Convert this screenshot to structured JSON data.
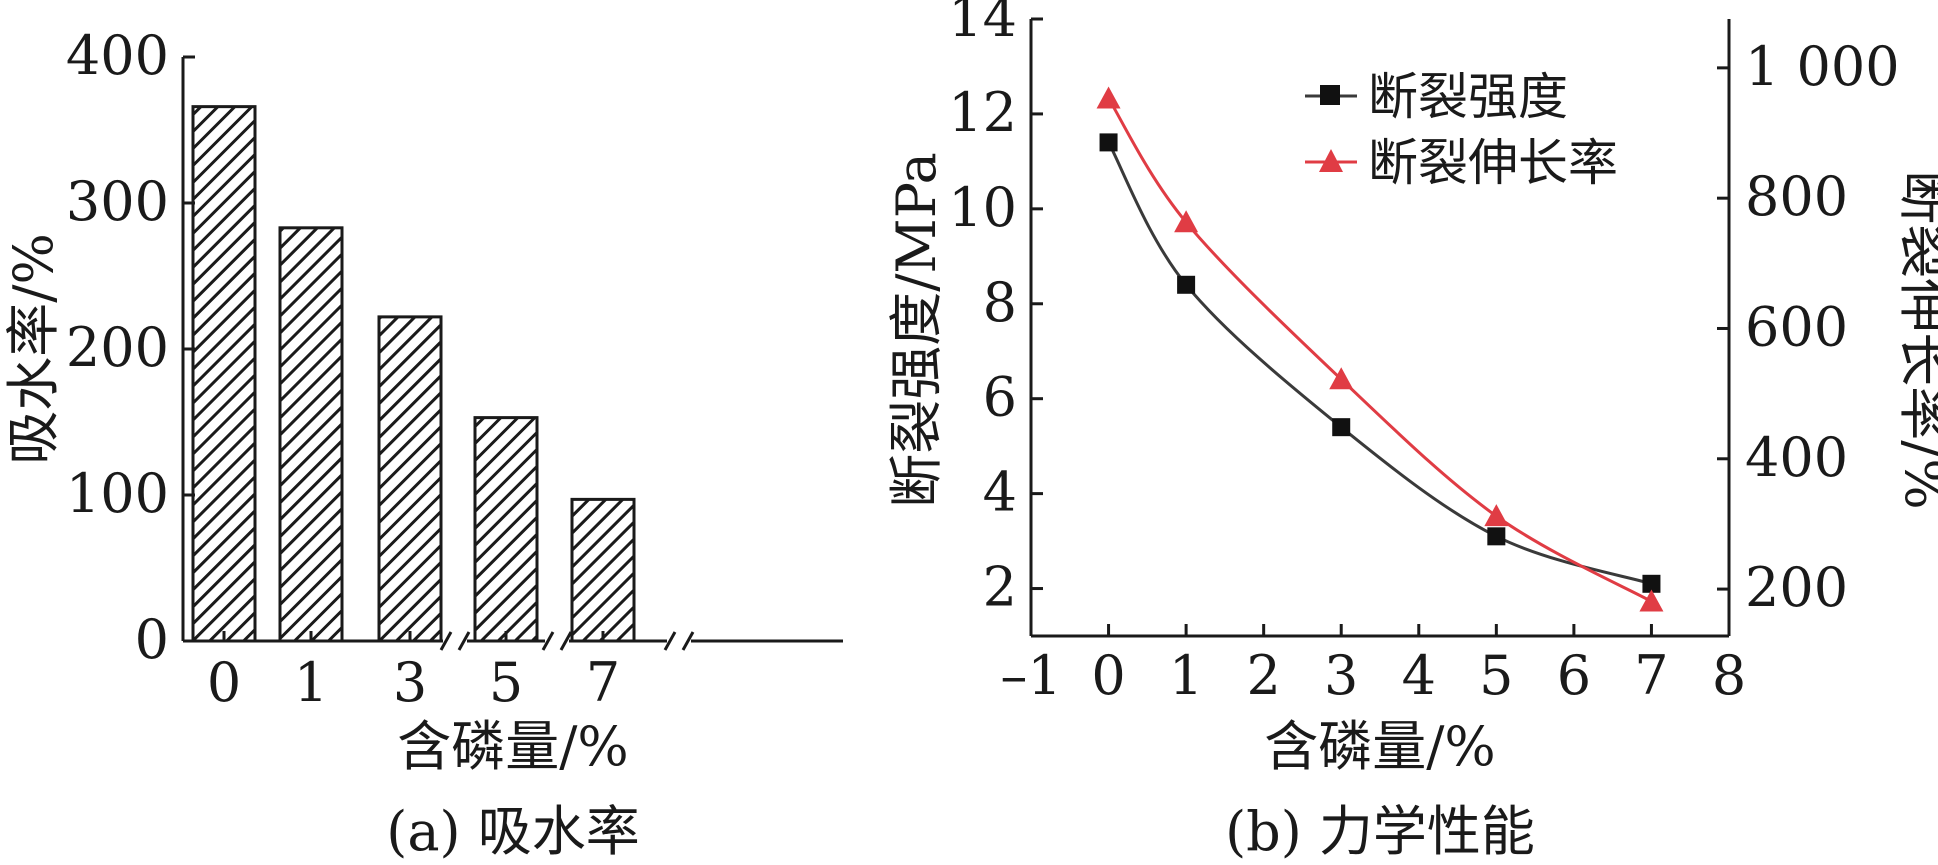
{
  "chart_data": [
    {
      "type": "bar",
      "caption": "(a) 吸水率",
      "xlabel": "含磷量/%",
      "ylabel": "吸水率/%",
      "categories": [
        "0",
        "1",
        "3",
        "5",
        "7"
      ],
      "values": [
        366,
        283,
        222,
        153,
        97
      ],
      "ylim": [
        0,
        400
      ],
      "yticks": [
        "0",
        "100",
        "200",
        "300",
        "400"
      ],
      "axis_breaks": true,
      "bar_pattern": "diagonal-hatch"
    },
    {
      "type": "line",
      "caption": "(b) 力学性能",
      "xlabel": "含磷量/%",
      "ylabel": "断裂强度/MPa",
      "y2label": "断裂伸长率/%",
      "xlim": [
        -1,
        8
      ],
      "xticks": [
        "–1",
        "0",
        "1",
        "2",
        "3",
        "4",
        "5",
        "6",
        "7",
        "8"
      ],
      "ylim": [
        1,
        14
      ],
      "yticks": [
        "2",
        "4",
        "6",
        "8",
        "10",
        "12",
        "14"
      ],
      "y2lim": [
        128,
        1075
      ],
      "y2ticks": [
        "200",
        "400",
        "600",
        "800",
        "1 000"
      ],
      "legend_position": "top-right",
      "series": [
        {
          "name": "断裂强度",
          "axis": "left",
          "marker": "square",
          "color": "#3a3a3a",
          "x": [
            0,
            1,
            3,
            5,
            7
          ],
          "y": [
            11.4,
            8.4,
            5.4,
            3.1,
            2.1
          ]
        },
        {
          "name": "断裂伸长率",
          "axis": "right",
          "marker": "triangle",
          "color": "#e03c44",
          "x": [
            0,
            1,
            3,
            5,
            7
          ],
          "y": [
            953,
            763,
            522,
            312,
            181
          ]
        }
      ]
    }
  ]
}
